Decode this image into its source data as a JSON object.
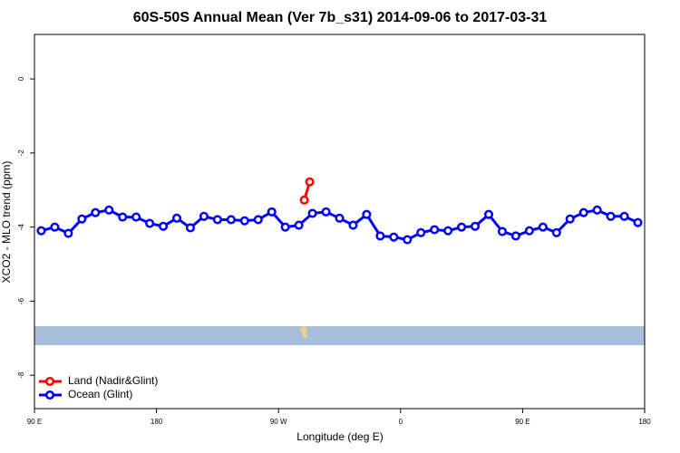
{
  "chart_data": {
    "type": "line",
    "title": "60S-50S Annual Mean (Ver 7b_s31)   2014-09-06 to 2017-03-31",
    "x_label": "Longitude (deg E)",
    "y_label": "XCO2 - MLO trend (ppm)",
    "xlim": [
      90,
      540
    ],
    "ylim": [
      -8.9,
      1.2
    ],
    "xticks": [
      {
        "value": 90,
        "label": "90 E"
      },
      180,
      {
        "value": 270,
        "label": "90 W"
      },
      0,
      {
        "value": 450,
        "label": "90 E"
      },
      180
    ],
    "xtick_positions": [
      90,
      180,
      270,
      360,
      450,
      540
    ],
    "yticks": [
      0,
      -2,
      -4,
      -6,
      -8
    ],
    "legend": "bottom-left",
    "series": [
      {
        "name": "Land (Nadir&Glint)",
        "color": "#ff0000",
        "x": [
          289,
          293
        ],
        "values": [
          -3.27,
          -2.78
        ]
      },
      {
        "name": "Ocean (Glint)",
        "color": "#0000ff",
        "x": [
          95,
          105,
          115,
          125,
          135,
          145,
          155,
          165,
          175,
          185,
          195,
          205,
          215,
          225,
          235,
          245,
          255,
          265,
          275,
          285,
          295,
          305,
          315,
          325,
          335,
          345,
          355,
          365,
          375,
          385,
          395,
          405,
          415,
          425,
          435,
          445,
          455,
          465,
          475,
          485,
          495,
          505,
          515,
          525,
          535
        ],
        "values": [
          -4.1,
          -4.0,
          -4.17,
          -3.78,
          -3.61,
          -3.54,
          -3.73,
          -3.73,
          -3.9,
          -3.98,
          -3.76,
          -4.02,
          -3.71,
          -3.8,
          -3.8,
          -3.83,
          -3.8,
          -3.59,
          -4.0,
          -3.95,
          -3.63,
          -3.59,
          -3.76,
          -3.95,
          -3.66,
          -4.24,
          -4.27,
          -4.34,
          -4.15,
          -4.07,
          -4.1,
          -4.0,
          -3.98,
          -3.66,
          -4.12,
          -4.24,
          -4.1,
          -4.0,
          -4.15,
          -3.78,
          -3.61,
          -3.54,
          -3.71,
          -3.71,
          -3.88
        ]
      }
    ]
  }
}
